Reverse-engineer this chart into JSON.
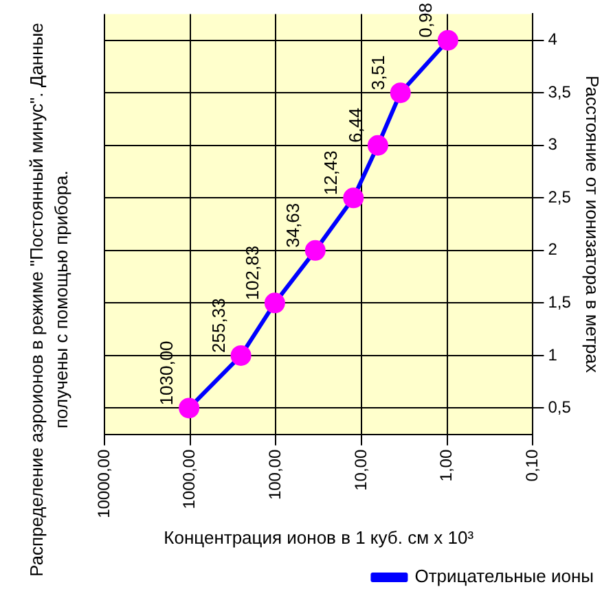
{
  "chart_data": {
    "type": "line",
    "title": "Распределение аэроионов в режиме \"Постоянный минус\". Данные получены с помощью прибора.",
    "xlabel": "Концентрация ионов в 1 куб. см х 10³",
    "ylabel": "Расстояние от ионизатора в метрах",
    "series": [
      {
        "name": "Отрицательные ионы",
        "color": "#0000ff",
        "x": [
          1030,
          255.33,
          102.83,
          34.63,
          12.43,
          6.44,
          3.51,
          0.98
        ],
        "values": [
          0.5,
          1,
          1.5,
          2,
          2.5,
          3,
          3.5,
          4
        ]
      }
    ],
    "log": "x",
    "xlim": [
      10000,
      0.1
    ],
    "xticks": [
      {
        "value": 10000,
        "label": "10000,00"
      },
      {
        "value": 1000,
        "label": "1000,00"
      },
      {
        "value": 100,
        "label": "100,00"
      },
      {
        "value": 10,
        "label": "10,00"
      },
      {
        "value": 1,
        "label": "1,00"
      },
      {
        "value": 0.1,
        "label": "0,10"
      }
    ],
    "ylim": [
      0.25,
      4.25
    ],
    "yticks": [
      {
        "value": 0.5,
        "label": "0,5"
      },
      1,
      {
        "value": 1.5,
        "label": "1,5"
      },
      2,
      {
        "value": 2.5,
        "label": "2,5"
      },
      3,
      {
        "value": 3.5,
        "label": "3,5"
      },
      4
    ],
    "annotations": [
      {
        "text": "1030,00",
        "x": 1030,
        "y": 0.5
      },
      {
        "text": "255,33",
        "x": 255.33,
        "y": 1
      },
      {
        "text": "102,83",
        "x": 102.83,
        "y": 1.5
      },
      {
        "text": "34,63",
        "x": 34.63,
        "y": 2
      },
      {
        "text": "12,43",
        "x": 12.43,
        "y": 2.5
      },
      {
        "text": "6,44",
        "x": 6.44,
        "y": 3
      },
      {
        "text": "3,51",
        "x": 3.51,
        "y": 3.5
      },
      {
        "text": "0,98",
        "x": 0.98,
        "y": 4
      }
    ],
    "grid": true,
    "legend": "bottom right",
    "marker": "circle",
    "line_style": "solid"
  }
}
